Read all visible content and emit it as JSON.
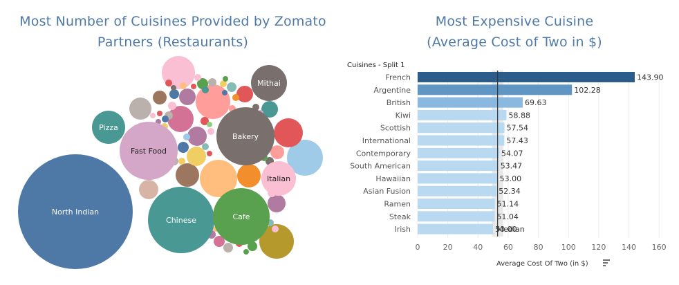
{
  "chart_data": [
    {
      "type": "bubble",
      "title": "Most Number of Cuisines Provided by Zomato Partners (Restaurants)",
      "title_lines": [
        "Most Number of Cuisines Provided by Zomato",
        "Partners (Restaurants)"
      ],
      "labeled_bubbles": [
        {
          "label": "North Indian",
          "color": "#4e79a7"
        },
        {
          "label": "Chinese",
          "color": "#499894"
        },
        {
          "label": "Cafe",
          "color": "#59a14f"
        },
        {
          "label": "Fast Food",
          "color": "#d4a6c8"
        },
        {
          "label": "Bakery",
          "color": "#79706e"
        },
        {
          "label": "Italian",
          "color": "#fabfd2"
        },
        {
          "label": "Pizza",
          "color": "#499894"
        },
        {
          "label": "Mithai",
          "color": "#79706e"
        }
      ]
    },
    {
      "type": "bar",
      "orientation": "horizontal",
      "title": "Most Expensive Cuisine (Average Cost of Two in $)",
      "title_lines": [
        "Most Expensive Cuisine",
        "(Average Cost of Two in $)"
      ],
      "split_header": "Cuisines - Split 1",
      "categories": [
        "French",
        "Argentine",
        "British",
        "Kiwi",
        "Scottish",
        "International",
        "Contemporary",
        "South American",
        "Hawaiian",
        "Asian Fusion",
        "Ramen",
        "Steak",
        "Irish"
      ],
      "values": [
        143.9,
        102.28,
        69.63,
        58.88,
        57.54,
        57.43,
        54.07,
        53.47,
        53.0,
        52.34,
        51.14,
        51.04,
        50.0
      ],
      "value_labels": [
        "143.90",
        "102.28",
        "69.63",
        "58.88",
        "57.54",
        "57.43",
        "54.07",
        "53.47",
        "53.00",
        "52.34",
        "51.14",
        "51.04",
        "50.00"
      ],
      "xlabel": "Average Cost Of Two (in $)",
      "xlim": [
        0,
        170
      ],
      "xticks": [
        0,
        20,
        40,
        60,
        80,
        100,
        120,
        140,
        160
      ],
      "reference_line": {
        "value": 53,
        "label": "Median"
      },
      "bar_colors": {
        "top": "#2b5c8a",
        "second": "#6096c4",
        "third": "#8bb8de",
        "rest": "#b8d9ef"
      }
    }
  ]
}
